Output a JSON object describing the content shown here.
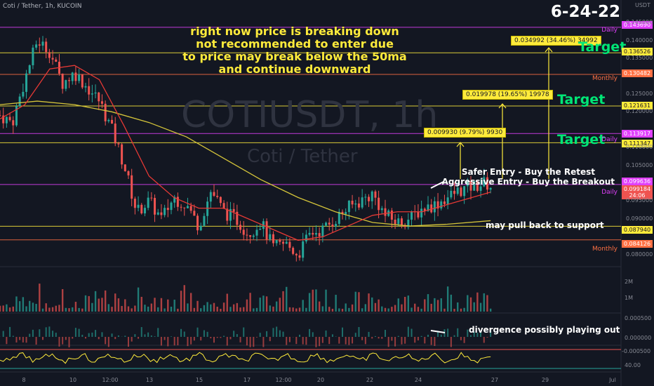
{
  "header": {
    "title": "Coti / Tether, 1h, KUCOIN",
    "date": "6-24-22",
    "axis_unit": "USDT"
  },
  "watermark": {
    "symbol": "COTIUSDT, 1h",
    "name": "Coti / Tether"
  },
  "note": {
    "line1": "right now price is breaking down",
    "line2": "not recommended to enter due",
    "line3": "to price may break below the 50ma",
    "line4": "and continue downward"
  },
  "labels": {
    "target1": "Target",
    "target2": "Target",
    "target3": "Target",
    "safer_entry": "Safer Entry - Buy the Retest",
    "aggressive_entry": "Aggressive Entry - Buy the Breakout",
    "pullback": "may pull back to support",
    "divergence": "divergence possibly playing out"
  },
  "callouts": {
    "c1": "0.009930 (9.79%) 9930",
    "c2": "0.019978 (19.65%) 19978",
    "c3": "0.034992 (34.46%) 34992"
  },
  "level_labels": {
    "daily_top": "Daily",
    "monthly_upper": "Monthly",
    "daily_mid": "Daily",
    "daily_low": "Daily",
    "monthly_low": "Monthly"
  },
  "price_tags": {
    "p1": "0.143690",
    "p2": "0.136526",
    "p3": "0.130482",
    "p4": "0.121631",
    "p5": "0.113917",
    "p6": "0.111347",
    "p7": "0.099636",
    "p8": "0.099184",
    "p8_timer": "24:06",
    "p9": "0.087940",
    "p10": "0.084126"
  },
  "volume_ticks": {
    "v1": "2M",
    "v2": "1M"
  },
  "macd_ticks": {
    "m1": "0.000500",
    "m2": "0.000000",
    "m3": "-0.000500"
  },
  "rsi_tick": "40.00",
  "colors": {
    "background": "#131722",
    "bull": "#26a69a",
    "bear": "#ef5350",
    "ma_fast": "#e53935",
    "ma_slow": "#d4c43a",
    "daily_line": "#e040fb",
    "monthly_line": "#ff7043",
    "target_line": "#ffeb3b",
    "target_text": "#00e676"
  },
  "chart_data": {
    "type": "candlestick",
    "title": "Coti / Tether, 1h, KUCOIN",
    "x_ticks": [
      "8",
      "10",
      "12:00",
      "13",
      "15",
      "17",
      "12:00",
      "20",
      "22",
      "24",
      "27",
      "29",
      "Jul"
    ],
    "y_ticks": [
      "0.145000",
      "0.140000",
      "0.135000",
      "0.125000",
      "0.120000",
      "0.110000",
      "0.105000",
      "0.095000",
      "0.090000",
      "0.080000"
    ],
    "ylim": [
      0.077,
      0.147
    ],
    "close_path": [
      {
        "x": 0.0,
        "y": 0.119
      },
      {
        "x": 0.02,
        "y": 0.117
      },
      {
        "x": 0.04,
        "y": 0.129
      },
      {
        "x": 0.06,
        "y": 0.14
      },
      {
        "x": 0.08,
        "y": 0.137
      },
      {
        "x": 0.1,
        "y": 0.128
      },
      {
        "x": 0.12,
        "y": 0.131
      },
      {
        "x": 0.14,
        "y": 0.127
      },
      {
        "x": 0.16,
        "y": 0.123
      },
      {
        "x": 0.18,
        "y": 0.115
      },
      {
        "x": 0.2,
        "y": 0.105
      },
      {
        "x": 0.22,
        "y": 0.092
      },
      {
        "x": 0.24,
        "y": 0.095
      },
      {
        "x": 0.26,
        "y": 0.09
      },
      {
        "x": 0.28,
        "y": 0.096
      },
      {
        "x": 0.3,
        "y": 0.094
      },
      {
        "x": 0.32,
        "y": 0.088
      },
      {
        "x": 0.34,
        "y": 0.098
      },
      {
        "x": 0.36,
        "y": 0.092
      },
      {
        "x": 0.38,
        "y": 0.09
      },
      {
        "x": 0.4,
        "y": 0.086
      },
      {
        "x": 0.42,
        "y": 0.089
      },
      {
        "x": 0.44,
        "y": 0.082
      },
      {
        "x": 0.46,
        "y": 0.083
      },
      {
        "x": 0.48,
        "y": 0.08
      },
      {
        "x": 0.5,
        "y": 0.086
      },
      {
        "x": 0.52,
        "y": 0.087
      },
      {
        "x": 0.54,
        "y": 0.09
      },
      {
        "x": 0.56,
        "y": 0.093
      },
      {
        "x": 0.58,
        "y": 0.095
      },
      {
        "x": 0.6,
        "y": 0.097
      },
      {
        "x": 0.62,
        "y": 0.091
      },
      {
        "x": 0.64,
        "y": 0.089
      },
      {
        "x": 0.66,
        "y": 0.09
      },
      {
        "x": 0.68,
        "y": 0.093
      },
      {
        "x": 0.7,
        "y": 0.094
      },
      {
        "x": 0.72,
        "y": 0.096
      },
      {
        "x": 0.74,
        "y": 0.098
      },
      {
        "x": 0.76,
        "y": 0.099
      },
      {
        "x": 0.78,
        "y": 0.1
      },
      {
        "x": 0.79,
        "y": 0.0992
      }
    ],
    "ma_fast": [
      {
        "x": 0.0,
        "y": 0.118
      },
      {
        "x": 0.04,
        "y": 0.122
      },
      {
        "x": 0.08,
        "y": 0.132
      },
      {
        "x": 0.12,
        "y": 0.133
      },
      {
        "x": 0.16,
        "y": 0.129
      },
      {
        "x": 0.2,
        "y": 0.116
      },
      {
        "x": 0.24,
        "y": 0.102
      },
      {
        "x": 0.28,
        "y": 0.096
      },
      {
        "x": 0.32,
        "y": 0.093
      },
      {
        "x": 0.36,
        "y": 0.093
      },
      {
        "x": 0.4,
        "y": 0.09
      },
      {
        "x": 0.44,
        "y": 0.087
      },
      {
        "x": 0.48,
        "y": 0.084
      },
      {
        "x": 0.52,
        "y": 0.085
      },
      {
        "x": 0.56,
        "y": 0.088
      },
      {
        "x": 0.6,
        "y": 0.091
      },
      {
        "x": 0.64,
        "y": 0.092
      },
      {
        "x": 0.68,
        "y": 0.092
      },
      {
        "x": 0.72,
        "y": 0.094
      },
      {
        "x": 0.76,
        "y": 0.096
      },
      {
        "x": 0.79,
        "y": 0.0975
      }
    ],
    "ma_slow": [
      {
        "x": 0.0,
        "y": 0.122
      },
      {
        "x": 0.06,
        "y": 0.123
      },
      {
        "x": 0.12,
        "y": 0.122
      },
      {
        "x": 0.18,
        "y": 0.12
      },
      {
        "x": 0.24,
        "y": 0.117
      },
      {
        "x": 0.3,
        "y": 0.113
      },
      {
        "x": 0.36,
        "y": 0.107
      },
      {
        "x": 0.42,
        "y": 0.101
      },
      {
        "x": 0.48,
        "y": 0.096
      },
      {
        "x": 0.54,
        "y": 0.092
      },
      {
        "x": 0.6,
        "y": 0.089
      },
      {
        "x": 0.66,
        "y": 0.088
      },
      {
        "x": 0.72,
        "y": 0.0885
      },
      {
        "x": 0.79,
        "y": 0.0895
      }
    ],
    "levels": [
      {
        "price": 0.14369,
        "type": "daily"
      },
      {
        "price": 0.130482,
        "type": "monthly"
      },
      {
        "price": 0.121631,
        "type": "target"
      },
      {
        "price": 0.113917,
        "type": "daily"
      },
      {
        "price": 0.111347,
        "type": "target"
      },
      {
        "price": 0.136526,
        "type": "target"
      },
      {
        "price": 0.099636,
        "type": "daily"
      },
      {
        "price": 0.08794,
        "type": "support"
      },
      {
        "price": 0.084126,
        "type": "monthly"
      }
    ]
  }
}
